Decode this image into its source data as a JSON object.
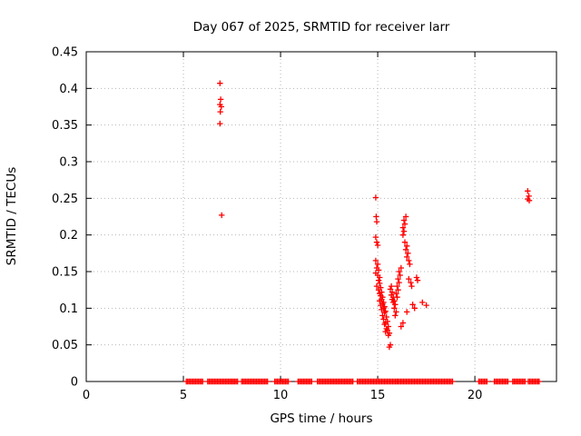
{
  "chart_data": {
    "type": "scatter",
    "title": "Day 067 of 2025, SRMTID for receiver larr",
    "xlabel": "GPS time / hours",
    "ylabel": "SRMTID / TECUs",
    "xlim": [
      0,
      24.2
    ],
    "ylim": [
      0,
      0.45
    ],
    "grid": true,
    "legend": "none",
    "marker": "plus",
    "marker_color": "#ff0000",
    "xticks": [
      {
        "value": 0,
        "label": "0"
      },
      {
        "value": 5,
        "label": "5"
      },
      {
        "value": 10,
        "label": "10"
      },
      {
        "value": 15,
        "label": "15"
      },
      {
        "value": 20,
        "label": "20"
      }
    ],
    "yticks": [
      {
        "value": 0.0,
        "label": "0"
      },
      {
        "value": 0.05,
        "label": "0.05"
      },
      {
        "value": 0.1,
        "label": "0.1"
      },
      {
        "value": 0.15,
        "label": "0.15"
      },
      {
        "value": 0.2,
        "label": "0.2"
      },
      {
        "value": 0.25,
        "label": "0.25"
      },
      {
        "value": 0.3,
        "label": "0.3"
      },
      {
        "value": 0.35,
        "label": "0.35"
      },
      {
        "value": 0.4,
        "label": "0.4"
      },
      {
        "value": 0.45,
        "label": "0.45"
      }
    ],
    "zero_line_segments": [
      [
        5.15,
        6.05
      ],
      [
        6.25,
        7.85
      ],
      [
        8.0,
        9.35
      ],
      [
        9.7,
        10.45
      ],
      [
        10.9,
        11.65
      ],
      [
        11.9,
        13.75
      ],
      [
        13.95,
        15.3
      ],
      [
        15.35,
        18.9
      ],
      [
        20.2,
        20.65
      ],
      [
        21.0,
        21.75
      ],
      [
        21.95,
        22.6
      ],
      [
        22.75,
        23.35
      ]
    ],
    "zero_line_step": 0.07,
    "points": [
      [
        6.88,
        0.407
      ],
      [
        6.92,
        0.385
      ],
      [
        6.88,
        0.378
      ],
      [
        6.95,
        0.375
      ],
      [
        6.9,
        0.368
      ],
      [
        6.88,
        0.352
      ],
      [
        6.97,
        0.227
      ],
      [
        22.72,
        0.26
      ],
      [
        22.78,
        0.253
      ],
      [
        22.72,
        0.249
      ],
      [
        22.8,
        0.247
      ],
      [
        14.9,
        0.251
      ],
      [
        14.92,
        0.225
      ],
      [
        14.95,
        0.218
      ],
      [
        14.9,
        0.197
      ],
      [
        14.95,
        0.19
      ],
      [
        15.0,
        0.186
      ],
      [
        14.9,
        0.165
      ],
      [
        15.0,
        0.16
      ],
      [
        14.95,
        0.155
      ],
      [
        15.05,
        0.152
      ],
      [
        14.9,
        0.148
      ],
      [
        15.0,
        0.145
      ],
      [
        15.1,
        0.142
      ],
      [
        15.05,
        0.138
      ],
      [
        15.1,
        0.134
      ],
      [
        14.95,
        0.13
      ],
      [
        15.15,
        0.128
      ],
      [
        15.05,
        0.125
      ],
      [
        15.2,
        0.122
      ],
      [
        15.1,
        0.12
      ],
      [
        15.15,
        0.117
      ],
      [
        15.25,
        0.115
      ],
      [
        15.2,
        0.112
      ],
      [
        15.1,
        0.11
      ],
      [
        15.3,
        0.108
      ],
      [
        15.25,
        0.106
      ],
      [
        15.15,
        0.104
      ],
      [
        15.35,
        0.102
      ],
      [
        15.3,
        0.1
      ],
      [
        15.2,
        0.098
      ],
      [
        15.4,
        0.096
      ],
      [
        15.35,
        0.094
      ],
      [
        15.25,
        0.09
      ],
      [
        15.45,
        0.088
      ],
      [
        15.3,
        0.085
      ],
      [
        15.5,
        0.082
      ],
      [
        15.4,
        0.08
      ],
      [
        15.35,
        0.078
      ],
      [
        15.55,
        0.075
      ],
      [
        15.45,
        0.072
      ],
      [
        15.5,
        0.07
      ],
      [
        15.4,
        0.068
      ],
      [
        15.6,
        0.066
      ],
      [
        15.55,
        0.063
      ],
      [
        15.65,
        0.05
      ],
      [
        15.6,
        0.047
      ],
      [
        15.7,
        0.13
      ],
      [
        15.65,
        0.126
      ],
      [
        15.75,
        0.122
      ],
      [
        15.7,
        0.118
      ],
      [
        15.8,
        0.115
      ],
      [
        15.75,
        0.112
      ],
      [
        15.85,
        0.11
      ],
      [
        15.8,
        0.108
      ],
      [
        15.9,
        0.105
      ],
      [
        15.85,
        0.1
      ],
      [
        15.95,
        0.095
      ],
      [
        15.9,
        0.09
      ],
      [
        16.0,
        0.115
      ],
      [
        15.95,
        0.12
      ],
      [
        16.05,
        0.125
      ],
      [
        16.0,
        0.13
      ],
      [
        16.1,
        0.135
      ],
      [
        16.05,
        0.14
      ],
      [
        16.15,
        0.145
      ],
      [
        16.1,
        0.15
      ],
      [
        16.2,
        0.155
      ],
      [
        16.3,
        0.2
      ],
      [
        16.35,
        0.205
      ],
      [
        16.3,
        0.21
      ],
      [
        16.4,
        0.215
      ],
      [
        16.35,
        0.22
      ],
      [
        16.45,
        0.225
      ],
      [
        16.4,
        0.19
      ],
      [
        16.5,
        0.185
      ],
      [
        16.45,
        0.18
      ],
      [
        16.55,
        0.175
      ],
      [
        16.5,
        0.17
      ],
      [
        16.6,
        0.165
      ],
      [
        16.65,
        0.16
      ],
      [
        16.6,
        0.14
      ],
      [
        16.7,
        0.135
      ],
      [
        16.75,
        0.13
      ],
      [
        16.8,
        0.105
      ],
      [
        16.9,
        0.1
      ],
      [
        16.2,
        0.075
      ],
      [
        16.3,
        0.08
      ],
      [
        16.5,
        0.095
      ],
      [
        17.0,
        0.142
      ],
      [
        17.05,
        0.138
      ],
      [
        17.3,
        0.108
      ],
      [
        17.5,
        0.104
      ]
    ]
  }
}
